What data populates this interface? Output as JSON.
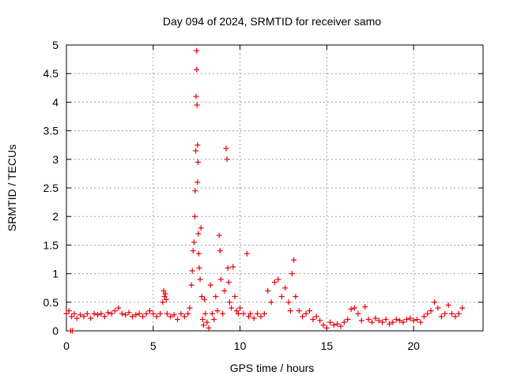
{
  "chart_data": {
    "type": "scatter",
    "title": "Day 094 of 2024, SRMTID for receiver samo",
    "xlabel": "GPS time / hours",
    "ylabel": "SRMTID / TECUs",
    "xlim": [
      0,
      24
    ],
    "ylim": [
      0,
      5
    ],
    "xticks": [
      0,
      5,
      10,
      15,
      20
    ],
    "yticks": [
      0,
      0.5,
      1,
      1.5,
      2,
      2.5,
      3,
      3.5,
      4,
      4.5,
      5
    ],
    "xtick_labels": [
      "0",
      "5",
      "10",
      "15",
      "20"
    ],
    "ytick_labels": [
      "0",
      "0.5",
      "1",
      "1.5",
      "2",
      "2.5",
      "3",
      "3.5",
      "4",
      "4.5",
      "5"
    ],
    "grid": true,
    "marker": "plus",
    "marker_color": "#e8000b",
    "series": [
      {
        "name": "SRMTID",
        "x": [
          0.0,
          0.15,
          0.25,
          0.3,
          0.35,
          0.45,
          0.6,
          0.8,
          1.0,
          1.2,
          1.4,
          1.6,
          1.8,
          2.0,
          2.2,
          2.4,
          2.6,
          2.8,
          3.0,
          3.2,
          3.4,
          3.6,
          3.8,
          4.0,
          4.2,
          4.4,
          4.6,
          4.8,
          5.0,
          5.2,
          5.4,
          5.55,
          5.6,
          5.65,
          5.7,
          5.75,
          5.8,
          6.0,
          6.2,
          6.4,
          6.6,
          6.8,
          7.0,
          7.1,
          7.2,
          7.25,
          7.3,
          7.35,
          7.4,
          7.42,
          7.45,
          7.47,
          7.5,
          7.5,
          7.52,
          7.55,
          7.55,
          7.58,
          7.6,
          7.62,
          7.65,
          7.7,
          7.75,
          7.8,
          7.85,
          7.9,
          7.95,
          8.0,
          8.1,
          8.2,
          8.3,
          8.4,
          8.5,
          8.6,
          8.7,
          8.8,
          8.85,
          8.9,
          9.0,
          9.1,
          9.2,
          9.25,
          9.3,
          9.35,
          9.4,
          9.5,
          9.6,
          9.7,
          9.8,
          9.9,
          10.0,
          10.2,
          10.4,
          10.5,
          10.6,
          10.8,
          11.0,
          11.2,
          11.4,
          11.6,
          11.8,
          12.0,
          12.2,
          12.4,
          12.6,
          12.8,
          12.9,
          13.0,
          13.1,
          13.2,
          13.4,
          13.6,
          13.8,
          14.0,
          14.2,
          14.4,
          14.6,
          14.8,
          15.0,
          15.2,
          15.4,
          15.6,
          15.8,
          16.0,
          16.2,
          16.4,
          16.6,
          16.8,
          17.0,
          17.2,
          17.4,
          17.6,
          17.8,
          18.0,
          18.2,
          18.4,
          18.6,
          18.8,
          19.0,
          19.2,
          19.4,
          19.6,
          19.8,
          20.0,
          20.2,
          20.4,
          20.6,
          20.8,
          21.0,
          21.2,
          21.4,
          21.6,
          21.8,
          22.0,
          22.2,
          22.4,
          22.6,
          22.8
        ],
        "y": [
          0.3,
          0.35,
          0.0,
          0.25,
          0.0,
          0.3,
          0.22,
          0.28,
          0.25,
          0.3,
          0.22,
          0.3,
          0.28,
          0.3,
          0.25,
          0.32,
          0.3,
          0.35,
          0.4,
          0.3,
          0.28,
          0.32,
          0.25,
          0.28,
          0.3,
          0.25,
          0.3,
          0.35,
          0.3,
          0.25,
          0.3,
          0.5,
          0.7,
          0.6,
          0.65,
          0.55,
          0.3,
          0.25,
          0.28,
          0.2,
          0.3,
          0.25,
          0.3,
          0.4,
          0.8,
          1.05,
          1.4,
          1.55,
          2.0,
          2.45,
          3.15,
          4.1,
          4.9,
          4.57,
          3.95,
          3.25,
          2.6,
          2.95,
          1.7,
          1.35,
          1.1,
          0.9,
          1.8,
          0.6,
          0.2,
          0.1,
          0.55,
          0.3,
          0.15,
          0.05,
          0.8,
          0.3,
          0.2,
          0.6,
          0.35,
          1.67,
          1.4,
          0.9,
          0.3,
          0.7,
          3.19,
          3.0,
          1.1,
          0.85,
          0.5,
          0.4,
          1.12,
          0.6,
          0.35,
          0.3,
          0.4,
          0.3,
          1.35,
          0.25,
          0.3,
          0.22,
          0.3,
          0.25,
          0.3,
          0.7,
          0.5,
          0.85,
          0.9,
          0.6,
          0.75,
          0.5,
          0.35,
          1.0,
          1.24,
          0.6,
          0.35,
          0.25,
          0.3,
          0.35,
          0.2,
          0.25,
          0.18,
          0.1,
          0.05,
          0.15,
          0.1,
          0.12,
          0.08,
          0.15,
          0.2,
          0.38,
          0.4,
          0.3,
          0.18,
          0.42,
          0.2,
          0.15,
          0.22,
          0.18,
          0.15,
          0.2,
          0.12,
          0.15,
          0.2,
          0.18,
          0.15,
          0.2,
          0.22,
          0.18,
          0.2,
          0.15,
          0.25,
          0.3,
          0.35,
          0.5,
          0.4,
          0.25,
          0.3,
          0.45,
          0.3,
          0.25,
          0.3,
          0.4
        ]
      }
    ]
  }
}
